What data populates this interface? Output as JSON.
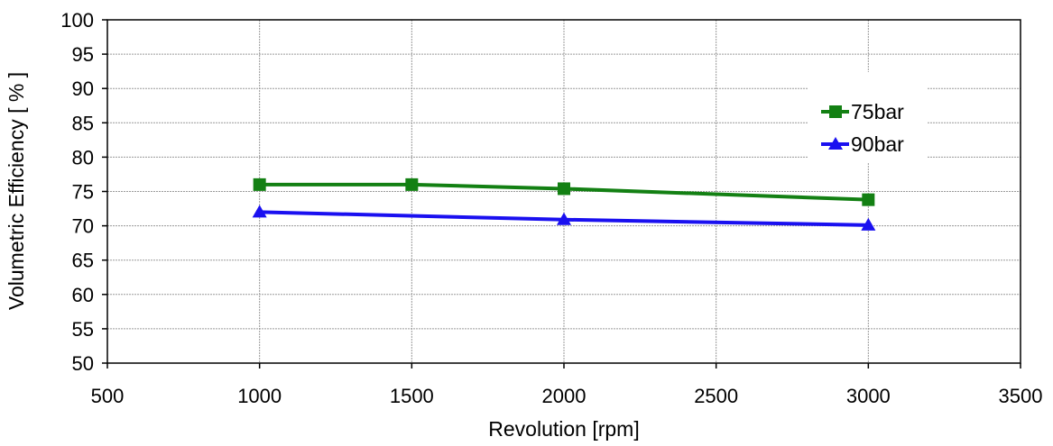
{
  "chart_data": {
    "type": "line",
    "title": "",
    "xlabel": "Revolution [rpm]",
    "ylabel": "Volumetric Efficiency [ % ]",
    "xlim": [
      500,
      3500
    ],
    "ylim": [
      50,
      100
    ],
    "x_ticks": [
      500,
      1000,
      1500,
      2000,
      2500,
      3000,
      3500
    ],
    "y_ticks": [
      50,
      55,
      60,
      65,
      70,
      75,
      80,
      85,
      90,
      95,
      100
    ],
    "grid": true,
    "legend_position": "right",
    "series": [
      {
        "name": "75bar",
        "color": "#138013",
        "marker": "square",
        "x": [
          1000,
          1500,
          2000,
          3000
        ],
        "values": [
          76,
          76,
          75.4,
          73.8
        ]
      },
      {
        "name": "90bar",
        "color": "#1a10f0",
        "marker": "triangle",
        "x": [
          1000,
          2000,
          3000
        ],
        "values": [
          72,
          70.9,
          70.1
        ]
      }
    ]
  }
}
